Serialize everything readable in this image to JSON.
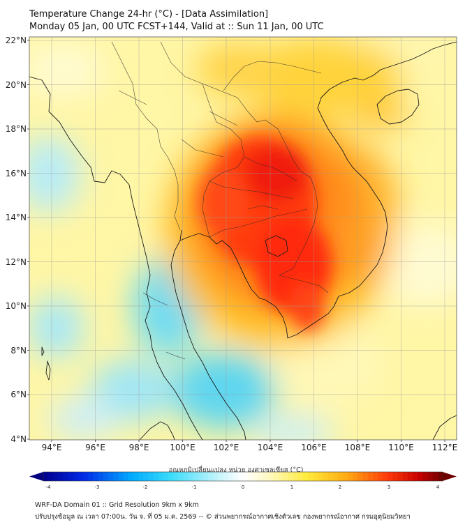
{
  "header": {
    "title_line1": "Temperature Change 24-hr (°C) - [Data Assimilation]",
    "title_line2": "Monday 05 Jan, 00 UTC FCST+144, Valid at :: Sun 11 Jan, 00 UTC"
  },
  "map": {
    "lat_labels": [
      "22°N",
      "20°N",
      "18°N",
      "16°N",
      "14°N",
      "12°N",
      "10°N",
      "8°N",
      "6°N",
      "4°N"
    ],
    "lon_labels": [
      "94°E",
      "96°E",
      "98°E",
      "100°E",
      "102°E",
      "104°E",
      "106°E",
      "108°E",
      "110°E",
      "112°E"
    ]
  },
  "colorbar": {
    "title": "อุณหภูมิเปลี่ยนแปลง หน่วย องศาเซลเซียส (°C)",
    "ticks": [
      "-4",
      "-3",
      "-2",
      "-1",
      "0",
      "1",
      "2",
      "3",
      "4"
    ],
    "min": -4,
    "max": 4
  },
  "footer": {
    "line1": "WRF-DA Domain 01 :: Grid Resolution 9km x 9km",
    "line2": "ปรับปรุงข้อมูล ณ เวลา 07:00น. วัน จ. ที่ 05 ม.ค. 2569 -- © ส่วนพยากรณ์อากาศเชิงตัวเลข กองพยากรณ์อากาศ กรมอุตุนิยมวิทยา"
  }
}
